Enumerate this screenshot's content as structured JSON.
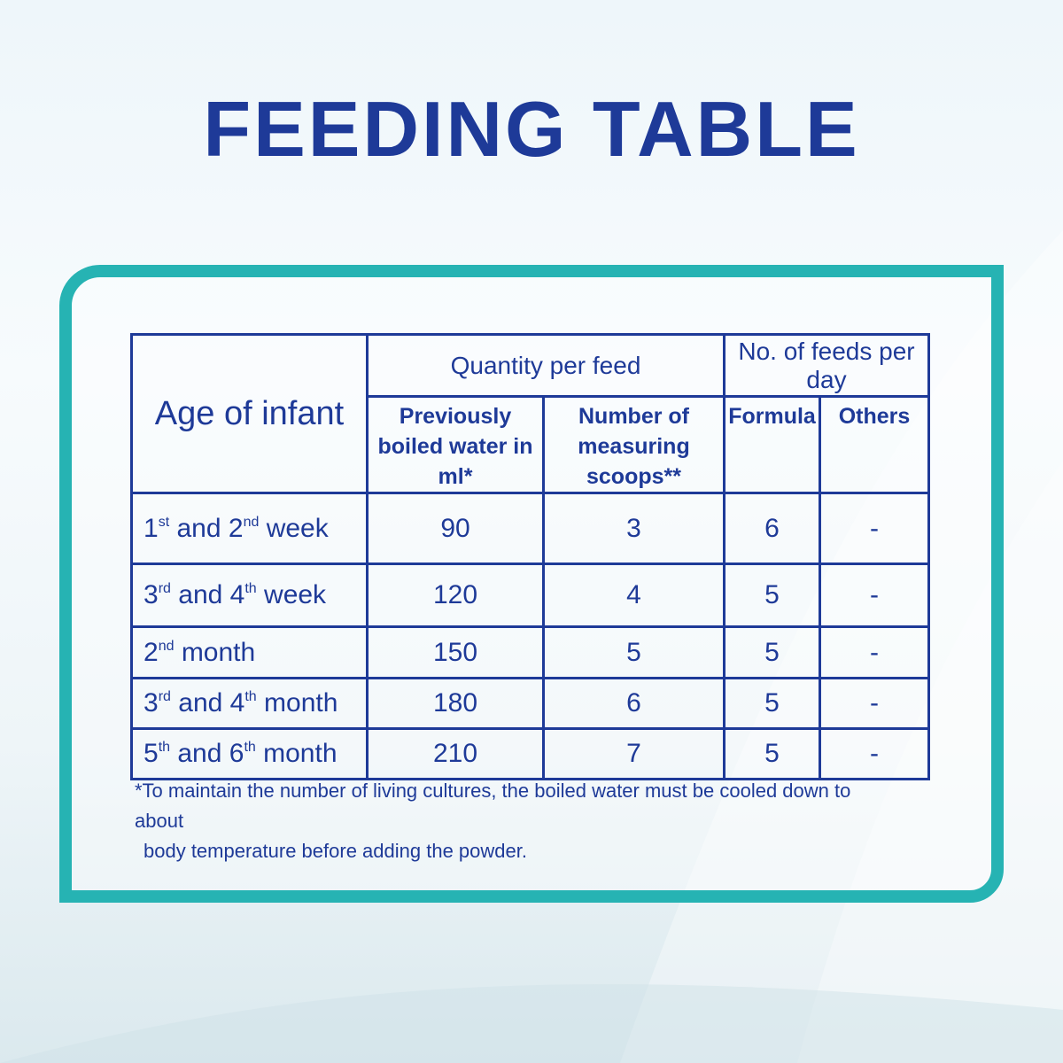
{
  "title": "FEEDING TABLE",
  "colors": {
    "brand_blue": "#1e3a98",
    "frame_teal": "#26b3b3"
  },
  "table": {
    "age_header": "Age of infant",
    "quantity_header": "Quantity per feed",
    "feeds_header": "No. of feeds per day",
    "water_header": "Previously boiled water in ml*",
    "scoops_header": "Number of measuring scoops**",
    "formula_header": "Formula",
    "others_header": "Others",
    "rows": [
      {
        "age": [
          "1",
          "st",
          " and 2",
          "nd",
          " week"
        ],
        "water": "90",
        "scoops": "3",
        "formula": "6",
        "others": "-"
      },
      {
        "age": [
          "3",
          "rd",
          " and 4",
          "th",
          " week"
        ],
        "water": "120",
        "scoops": "4",
        "formula": "5",
        "others": "-"
      },
      {
        "age": [
          "2",
          "nd",
          " month",
          "",
          ""
        ],
        "water": "150",
        "scoops": "5",
        "formula": "5",
        "others": "-"
      },
      {
        "age": [
          "3",
          "rd",
          " and 4",
          "th",
          " month"
        ],
        "water": "180",
        "scoops": "6",
        "formula": "5",
        "others": "-"
      },
      {
        "age": [
          "5",
          "th",
          " and 6",
          "th",
          " month"
        ],
        "water": "210",
        "scoops": "7",
        "formula": "5",
        "others": "-"
      }
    ]
  },
  "footnote": {
    "line1": "*To maintain the number of living cultures, the boiled water must be cooled down to about",
    "line2": "body temperature  before adding the powder."
  }
}
